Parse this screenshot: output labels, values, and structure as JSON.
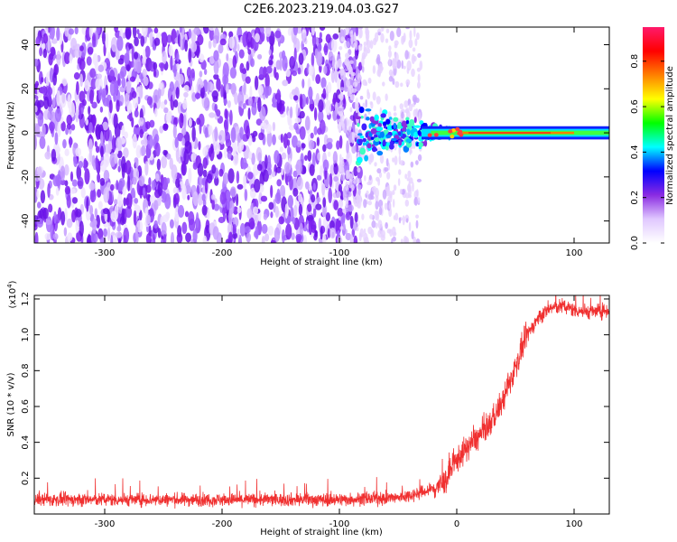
{
  "title": "C2E6.2023.219.04.03.G27",
  "chart_data": [
    {
      "type": "heatmap",
      "xlabel": "Height of straight line (km)",
      "ylabel": "Frequency (Hz)",
      "xlim": [
        -360,
        130
      ],
      "ylim": [
        -50,
        48
      ],
      "xticks": [
        -300,
        -200,
        -100,
        0,
        100
      ],
      "yticks": [
        -40,
        -20,
        0,
        20,
        40
      ],
      "colorbar": {
        "label": "Normalized spectral amplitude",
        "range": [
          0.0,
          0.95
        ],
        "ticks": [
          "0.0",
          "0.2",
          "0.4",
          "0.6",
          "0.8"
        ],
        "colors": [
          "#ffffff",
          "#e0c8ff",
          "#8a2be2",
          "#0000ff",
          "#00ffff",
          "#00ff00",
          "#ffff00",
          "#ff8000",
          "#ff0000",
          "#ff1a6b"
        ]
      },
      "regions": [
        {
          "x_range": [
            -360,
            -100
          ],
          "freq_range": [
            -50,
            48
          ],
          "amplitude": "0.0-0.25",
          "description_color": "#7b2cf0"
        },
        {
          "x_range": [
            -100,
            -30
          ],
          "freq_range": [
            -50,
            48
          ],
          "amplitude": "0.0-0.1"
        },
        {
          "x_range": [
            -85,
            -30
          ],
          "freq_range": [
            -10,
            10
          ],
          "amplitude": "0.2-0.5"
        },
        {
          "x_range": [
            -30,
            130
          ],
          "freq_range": [
            -2,
            2
          ],
          "amplitude": "0.6-0.95",
          "center_freq": 0
        }
      ]
    },
    {
      "type": "line",
      "xlabel": "Height of straight line (km)",
      "ylabel": "SNR (10 * v/v)",
      "yscale_note": "(x10",
      "yscale_exp": "4",
      "yscale_close": ")",
      "xlim": [
        -360,
        130
      ],
      "ylim": [
        0,
        1.22
      ],
      "xticks": [
        -300,
        -200,
        -100,
        0,
        100
      ],
      "yticks": [
        "0.2",
        "0.4",
        "0.6",
        "0.8",
        "1.0",
        "1.2"
      ],
      "series": [
        {
          "color": "#f03030",
          "x": [
            -360,
            -300,
            -200,
            -100,
            -50,
            -30,
            -20,
            -10,
            0,
            10,
            20,
            30,
            40,
            50,
            60,
            70,
            80,
            90,
            100,
            110,
            120,
            130
          ],
          "y": [
            0.08,
            0.08,
            0.08,
            0.08,
            0.09,
            0.12,
            0.14,
            0.18,
            0.3,
            0.38,
            0.44,
            0.52,
            0.64,
            0.82,
            1.0,
            1.1,
            1.15,
            1.16,
            1.14,
            1.13,
            1.13,
            1.14
          ]
        }
      ]
    }
  ]
}
